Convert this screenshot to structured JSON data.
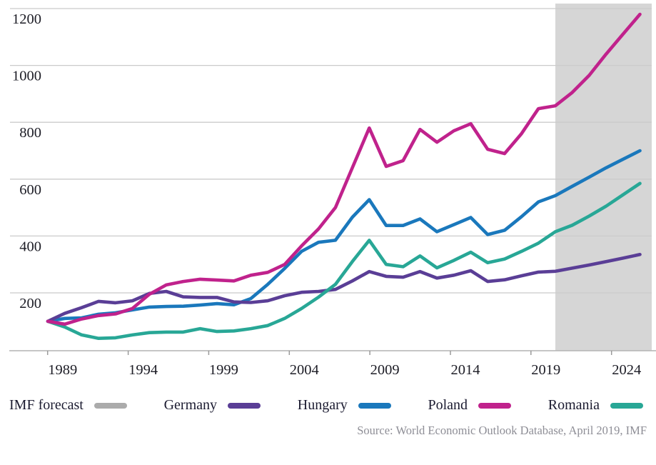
{
  "legend": {
    "items": [
      {
        "label": "IMF forecast",
        "color": "#ababab"
      },
      {
        "label": "Germany",
        "color": "#5a3e96"
      },
      {
        "label": "Hungary",
        "color": "#1a78bc"
      },
      {
        "label": "Poland",
        "color": "#c0228c"
      },
      {
        "label": "Romania",
        "color": "#28a796"
      }
    ]
  },
  "source": {
    "text": "Source: World Economic Outlook Database, April 2019, IMF"
  },
  "chart_data": {
    "type": "line",
    "title": "",
    "xlabel": "",
    "ylabel": "",
    "xlim": [
      1989,
      2024
    ],
    "ylim": [
      0,
      1260
    ],
    "grid": true,
    "legend_position": "bottom",
    "x": [
      1989,
      1990,
      1991,
      1992,
      1993,
      1994,
      1995,
      1996,
      1997,
      1998,
      1999,
      2000,
      2001,
      2002,
      2003,
      2004,
      2005,
      2006,
      2007,
      2008,
      2009,
      2010,
      2011,
      2012,
      2013,
      2014,
      2015,
      2016,
      2017,
      2018,
      2019,
      2020,
      2021,
      2022,
      2023,
      2024
    ],
    "x_ticks": [
      1989,
      1994,
      1999,
      2004,
      2009,
      2014,
      2019,
      2024
    ],
    "y_ticks": [
      200,
      400,
      600,
      800,
      1000,
      1200
    ],
    "forecast_region": {
      "label": "IMF forecast",
      "start_year": 2019,
      "fill": "#d6d6d6"
    },
    "series": [
      {
        "name": "Germany",
        "color": "#5a3e96",
        "values": [
          100,
          128,
          148,
          170,
          165,
          172,
          198,
          205,
          186,
          184,
          184,
          168,
          166,
          172,
          190,
          202,
          205,
          212,
          242,
          275,
          258,
          255,
          275,
          252,
          262,
          278,
          240,
          246,
          260,
          273,
          276,
          287,
          298,
          310,
          322,
          335
        ]
      },
      {
        "name": "Hungary",
        "color": "#1a78bc",
        "values": [
          100,
          110,
          112,
          125,
          130,
          140,
          150,
          152,
          153,
          157,
          162,
          158,
          180,
          230,
          286,
          346,
          378,
          385,
          466,
          528,
          437,
          437,
          460,
          415,
          440,
          465,
          405,
          420,
          468,
          520,
          542,
          575,
          607,
          640,
          670,
          700
        ]
      },
      {
        "name": "Poland",
        "color": "#c0228c",
        "values": [
          100,
          90,
          108,
          120,
          126,
          145,
          195,
          228,
          240,
          248,
          245,
          242,
          262,
          272,
          300,
          365,
          425,
          500,
          640,
          780,
          645,
          665,
          775,
          730,
          770,
          795,
          705,
          690,
          760,
          848,
          858,
          905,
          965,
          1040,
          1110,
          1180
        ]
      },
      {
        "name": "Romania",
        "color": "#28a796",
        "values": [
          100,
          80,
          52,
          40,
          42,
          52,
          60,
          62,
          62,
          74,
          64,
          66,
          74,
          85,
          110,
          145,
          185,
          230,
          310,
          385,
          300,
          292,
          330,
          288,
          314,
          343,
          306,
          319,
          346,
          375,
          415,
          438,
          470,
          505,
          545,
          585
        ]
      }
    ],
    "source": "Source: World Economic Outlook Database, April 2019, IMF"
  }
}
